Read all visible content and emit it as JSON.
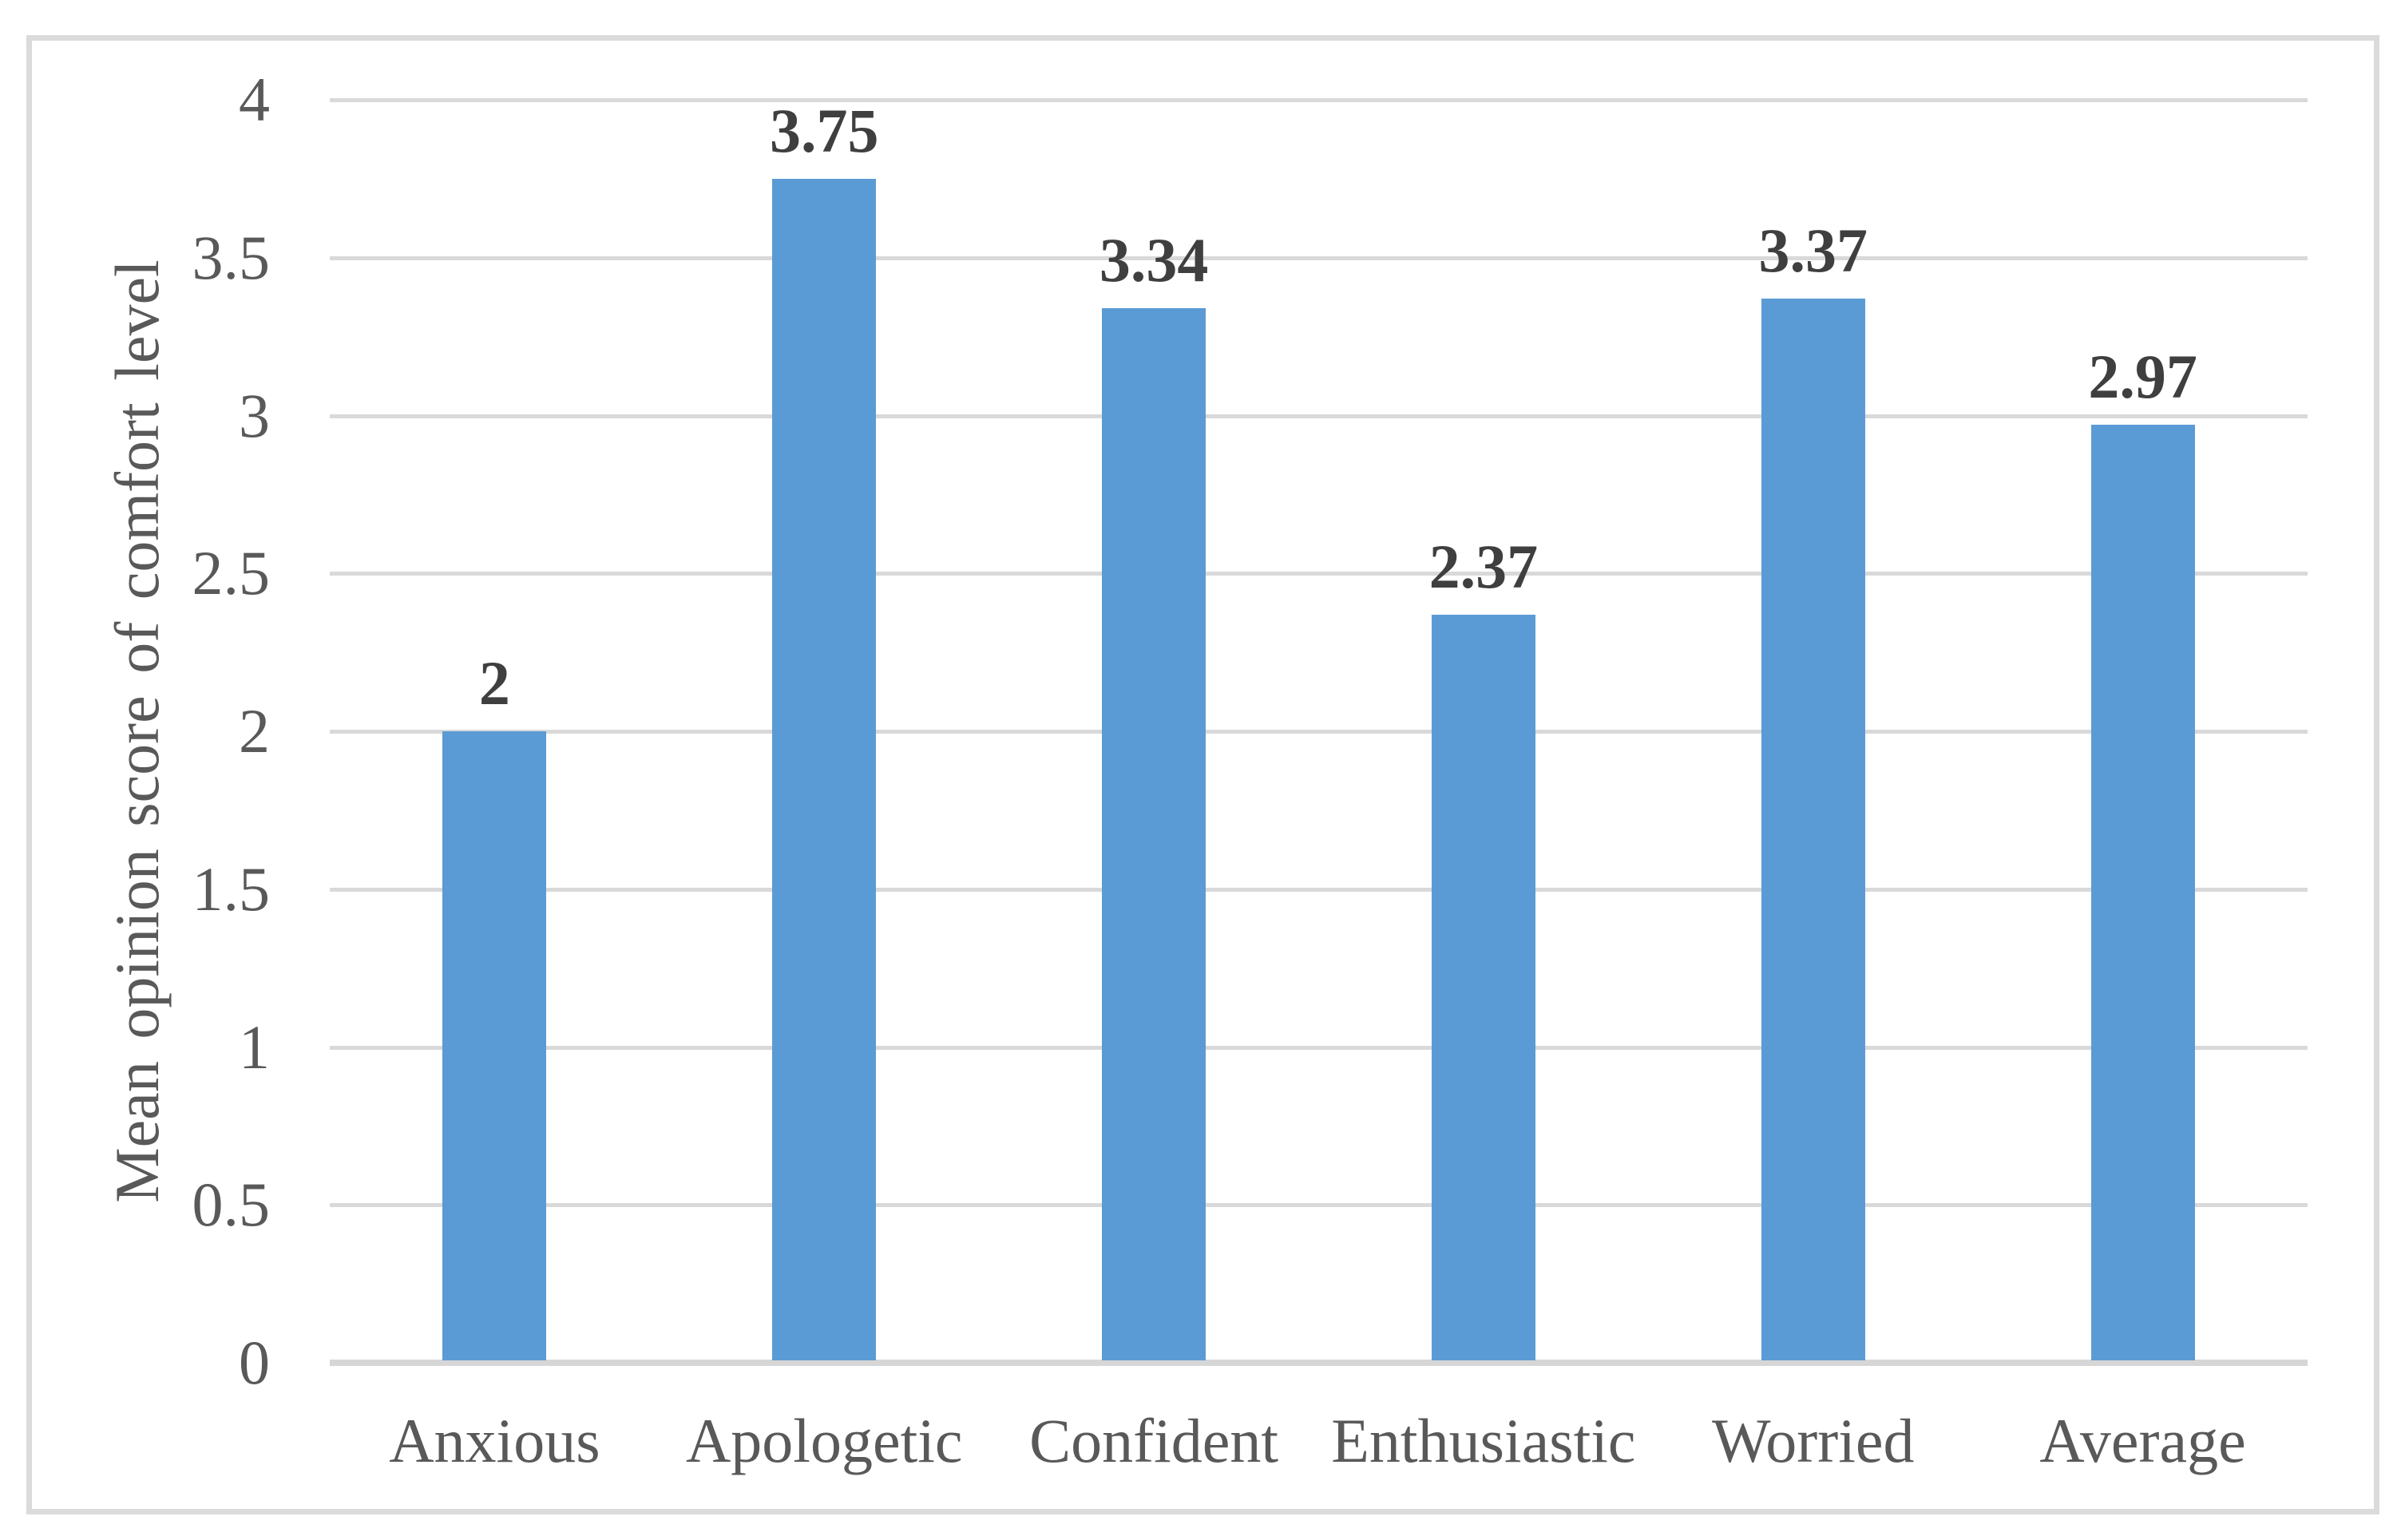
{
  "chart_data": {
    "type": "bar",
    "title": "",
    "categories": [
      "Anxious",
      "Apologetic",
      "Confident",
      "Enthusiastic",
      "Worried",
      "Average"
    ],
    "values": [
      2,
      3.75,
      3.34,
      2.37,
      3.37,
      2.97
    ],
    "data_labels": [
      "2",
      "3.75",
      "3.34",
      "2.37",
      "3.37",
      "2.97"
    ],
    "xlabel": "",
    "ylabel": "Mean opinion score of comfort level",
    "ylim": [
      0,
      4
    ],
    "ytick_step": 0.5,
    "yticks": [
      "0",
      "0.5",
      "1",
      "1.5",
      "2",
      "2.5",
      "3",
      "3.5",
      "4"
    ],
    "grid": "horizontal-every-0.5",
    "legend": "none",
    "colors": {
      "bar_fill": "#5B9BD5",
      "gridline": "#D9D9D9",
      "baseline": "#D6D6D6",
      "frame_border": "#DBDBDB",
      "axis_text": "#595959",
      "data_label_text": "#3F3F3F",
      "background": "#FFFFFF"
    }
  }
}
